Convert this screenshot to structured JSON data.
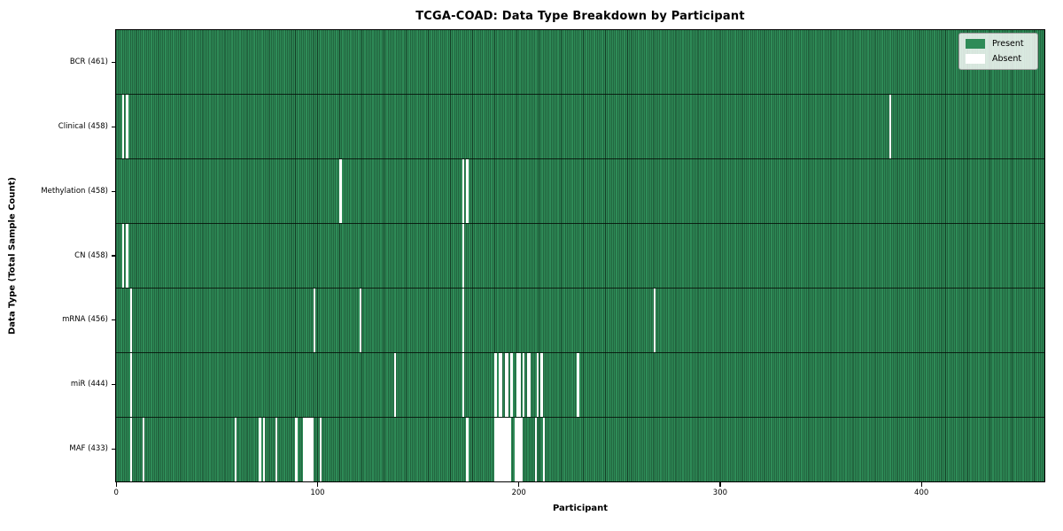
{
  "title": "TCGA-COAD: Data Type Breakdown by Participant",
  "legend": {
    "present_label": "Present",
    "absent_label": "Absent"
  },
  "chart_data": {
    "type": "heatmap",
    "title": "TCGA-COAD: Data Type Breakdown by Participant",
    "xlabel": "Participant",
    "ylabel": "Data Type (Total Sample Count)",
    "x_ticks": [
      0,
      100,
      200,
      300,
      400
    ],
    "x_range": [
      0,
      461
    ],
    "n_participants": 461,
    "grid": false,
    "legend_position": "upper right",
    "colors": {
      "present": "#2e8b57",
      "absent": "#ffffff",
      "cell_edge": "rgba(0,0,0,0.55)",
      "row_divider": "rgba(5,15,8,0.85)"
    },
    "legend": [
      {
        "label": "Present",
        "color": "#2e8b57"
      },
      {
        "label": "Absent",
        "color": "#ffffff"
      }
    ],
    "rows": [
      {
        "label": "BCR (461)",
        "name": "BCR",
        "total": 461,
        "absent": []
      },
      {
        "label": "Clinical (458)",
        "name": "Clinical",
        "total": 458,
        "absent": [
          3,
          5,
          384
        ]
      },
      {
        "label": "Methylation (458)",
        "name": "Methylation",
        "total": 458,
        "absent": [
          111,
          172,
          174
        ]
      },
      {
        "label": "CN (458)",
        "name": "CN",
        "total": 458,
        "absent": [
          3,
          5,
          172
        ]
      },
      {
        "label": "mRNA (456)",
        "name": "mRNA",
        "total": 456,
        "absent": [
          7,
          98,
          121,
          172,
          267
        ]
      },
      {
        "label": "miR (444)",
        "name": "miR",
        "total": 444,
        "absent": [
          7,
          138,
          172,
          188,
          190,
          191,
          193,
          194,
          196,
          199,
          200,
          202,
          204,
          205,
          209,
          211,
          229
        ]
      },
      {
        "label": "MAF (433)",
        "name": "MAF",
        "total": 433,
        "absent": [
          7,
          13,
          59,
          71,
          73,
          79,
          89,
          93,
          94,
          95,
          96,
          97,
          101,
          174,
          188,
          189,
          190,
          191,
          192,
          193,
          194,
          195,
          198,
          199,
          200,
          201,
          208,
          212
        ]
      }
    ]
  }
}
